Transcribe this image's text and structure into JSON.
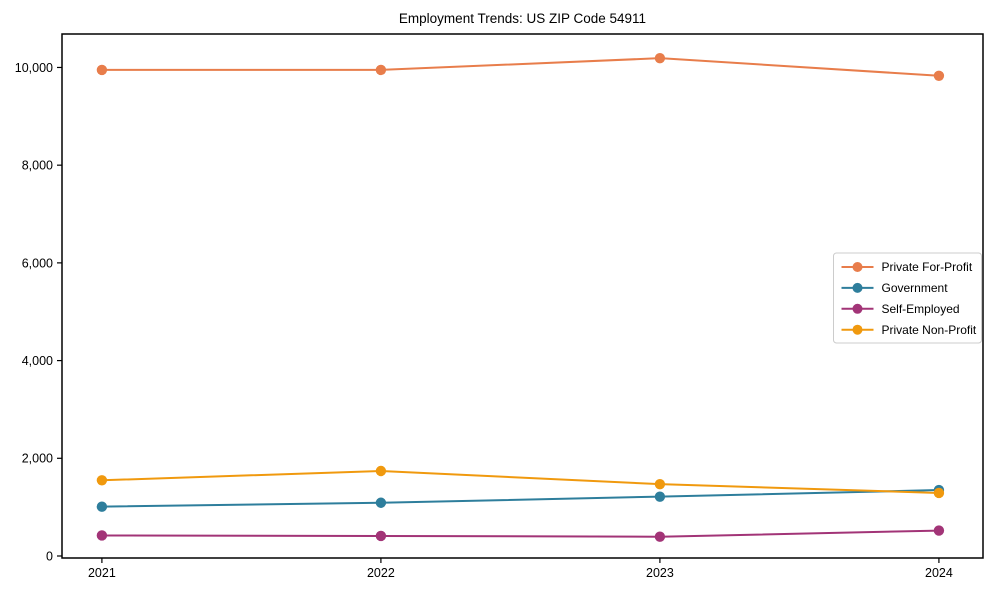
{
  "chart_data": {
    "type": "line",
    "title": "Employment Trends: US ZIP Code 54911",
    "x": [
      2021,
      2022,
      2023,
      2024
    ],
    "x_tick_labels": [
      "2021",
      "2022",
      "2023",
      "2024"
    ],
    "y_ticks": [
      {
        "value": 0,
        "label": "0"
      },
      {
        "value": 2000,
        "label": "2,000"
      },
      {
        "value": 4000,
        "label": "4,000"
      },
      {
        "value": 6000,
        "label": "6,000"
      },
      {
        "value": 8000,
        "label": "8,000"
      },
      {
        "value": 10000,
        "label": "10,000"
      }
    ],
    "series": [
      {
        "name": "Private For-Profit",
        "color": "#e87d4b",
        "values": [
          9950,
          9950,
          10190,
          9830
        ]
      },
      {
        "name": "Government",
        "color": "#2e7e9c",
        "values": [
          1010,
          1090,
          1215,
          1350
        ]
      },
      {
        "name": "Self-Employed",
        "color": "#a23477",
        "values": [
          420,
          410,
          395,
          520
        ]
      },
      {
        "name": "Private Non-Profit",
        "color": "#f0990e",
        "values": [
          1550,
          1740,
          1470,
          1290
        ]
      }
    ],
    "xlim": [
      2020.857,
      2024.158
    ],
    "ylim": [
      -41,
      10685
    ],
    "xlabel": "",
    "ylabel": "",
    "grid": false,
    "legend_position": "center right",
    "background_color": "#ffffff",
    "spine_color": "#000000",
    "legend_border_color": "#cccccc"
  }
}
